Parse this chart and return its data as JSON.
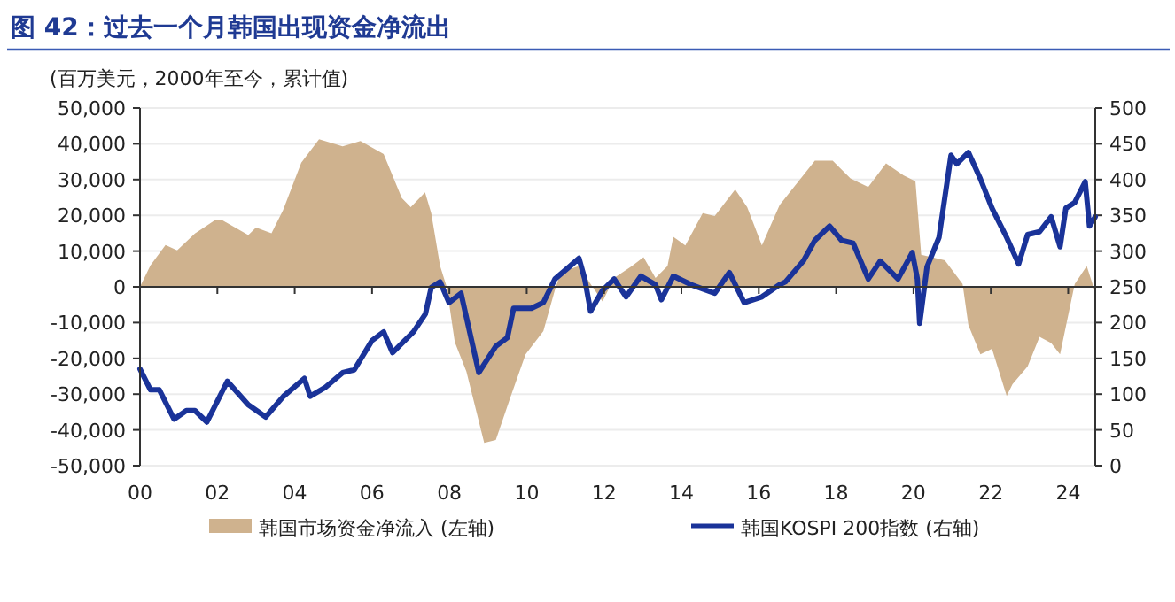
{
  "chart_data": {
    "type": "area",
    "title": "图 42：过去一个月韩国出现资金净流出",
    "subtitle": "(百万美元，2000年至今，累计值)",
    "xlim": [
      2000,
      2024.7
    ],
    "xticks": [
      {
        "value": 2000,
        "label": "00"
      },
      {
        "value": 2002,
        "label": "02"
      },
      {
        "value": 2004,
        "label": "04"
      },
      {
        "value": 2006,
        "label": "06"
      },
      {
        "value": 2008,
        "label": "08"
      },
      {
        "value": 2010,
        "label": "10"
      },
      {
        "value": 2012,
        "label": "12"
      },
      {
        "value": 2014,
        "label": "14"
      },
      {
        "value": 2016,
        "label": "16"
      },
      {
        "value": 2018,
        "label": "18"
      },
      {
        "value": 2020,
        "label": "20"
      },
      {
        "value": 2022,
        "label": "22"
      },
      {
        "value": 2024,
        "label": "24"
      }
    ],
    "ylim": [
      -50000,
      50000
    ],
    "yticks": [
      {
        "value": -50000,
        "label": "-50,000"
      },
      {
        "value": -40000,
        "label": "-40,000"
      },
      {
        "value": -30000,
        "label": "-30,000"
      },
      {
        "value": -20000,
        "label": "-20,000"
      },
      {
        "value": -10000,
        "label": "-10,000"
      },
      {
        "value": 0,
        "label": "0"
      },
      {
        "value": 10000,
        "label": "10,000"
      },
      {
        "value": 20000,
        "label": "20,000"
      },
      {
        "value": 30000,
        "label": "30,000"
      },
      {
        "value": 40000,
        "label": "40,000"
      },
      {
        "value": 50000,
        "label": "50,000"
      }
    ],
    "y2lim": [
      0,
      500
    ],
    "y2ticks": [
      0,
      50,
      100,
      150,
      200,
      250,
      300,
      350,
      400,
      450,
      500
    ],
    "grid": "y",
    "legend": "bottom",
    "series": [
      {
        "name": "韩国市场资金净流入 (左轴)",
        "type": "area",
        "color": "#cfb28e",
        "x": [
          2000.0,
          2000.27,
          2000.66,
          2000.96,
          2001.42,
          2001.96,
          2002.1,
          2002.8,
          2003.0,
          2003.4,
          2003.7,
          2004.17,
          2004.63,
          2005.24,
          2005.7,
          2006.3,
          2006.77,
          2007.0,
          2007.37,
          2007.53,
          2007.76,
          2007.93,
          2008.14,
          2008.44,
          2008.9,
          2009.2,
          2009.59,
          2009.97,
          2010.43,
          2010.73,
          2010.88,
          2011.35,
          2011.65,
          2011.96,
          2012.26,
          2012.72,
          2013.02,
          2013.33,
          2013.64,
          2013.79,
          2014.1,
          2014.55,
          2014.86,
          2015.39,
          2015.7,
          2016.08,
          2016.54,
          2017.15,
          2017.45,
          2017.91,
          2018.37,
          2018.83,
          2019.29,
          2019.74,
          2020.05,
          2020.2,
          2020.81,
          2021.27,
          2021.42,
          2021.73,
          2022.03,
          2022.41,
          2022.56,
          2022.95,
          2023.26,
          2023.56,
          2023.79,
          2024.17,
          2024.48,
          2024.7
        ],
        "values": [
          0,
          6000,
          11700,
          10200,
          14900,
          18800,
          18800,
          14500,
          16600,
          15000,
          21500,
          34700,
          41300,
          39300,
          40800,
          37100,
          24800,
          22300,
          26400,
          20600,
          5800,
          0,
          -15500,
          -23700,
          -43600,
          -42800,
          -30500,
          -18900,
          -12400,
          -800,
          4100,
          5800,
          800,
          -4100,
          2500,
          5800,
          8300,
          2500,
          5800,
          14000,
          11600,
          20600,
          19800,
          27200,
          22300,
          11600,
          22900,
          31200,
          35300,
          35300,
          30300,
          27900,
          34500,
          31200,
          29500,
          9000,
          7400,
          800,
          -10700,
          -18900,
          -17300,
          -30500,
          -27200,
          -22300,
          -14000,
          -15700,
          -18900,
          800,
          5800,
          -1600
        ]
      },
      {
        "name": "韩国KOSPI 200指数 (右轴)",
        "type": "line",
        "axis": "y2",
        "color": "#1a3399",
        "x": [
          2000.0,
          2000.27,
          2000.5,
          2000.88,
          2001.2,
          2001.42,
          2001.73,
          2002.26,
          2002.8,
          2003.25,
          2003.71,
          2004.25,
          2004.4,
          2004.78,
          2005.24,
          2005.54,
          2006.0,
          2006.3,
          2006.53,
          2006.77,
          2007.07,
          2007.38,
          2007.53,
          2007.76,
          2007.99,
          2008.3,
          2008.76,
          2009.2,
          2009.5,
          2009.66,
          2010.12,
          2010.43,
          2010.73,
          2011.1,
          2011.35,
          2011.5,
          2011.65,
          2011.96,
          2012.26,
          2012.57,
          2012.95,
          2013.33,
          2013.48,
          2013.79,
          2014.25,
          2014.86,
          2015.24,
          2015.62,
          2016.08,
          2016.54,
          2016.69,
          2017.15,
          2017.45,
          2017.83,
          2018.14,
          2018.44,
          2018.83,
          2019.14,
          2019.6,
          2019.97,
          2020.1,
          2020.16,
          2020.35,
          2020.66,
          2020.97,
          2021.12,
          2021.42,
          2021.73,
          2022.03,
          2022.41,
          2022.72,
          2022.95,
          2023.26,
          2023.56,
          2023.79,
          2023.94,
          2024.17,
          2024.44,
          2024.55,
          2024.7
        ],
        "values": [
          135,
          106,
          106,
          65,
          77,
          77,
          61,
          118,
          85,
          68,
          97,
          122,
          97,
          109,
          130,
          134,
          175,
          187,
          158,
          171,
          187,
          212,
          249,
          257,
          228,
          241,
          130,
          167,
          179,
          220,
          220,
          228,
          261,
          278,
          290,
          261,
          216,
          245,
          261,
          236,
          265,
          253,
          232,
          265,
          253,
          241,
          270,
          228,
          236,
          253,
          257,
          286,
          315,
          335,
          315,
          311,
          261,
          286,
          261,
          298,
          261,
          199,
          278,
          319,
          434,
          422,
          438,
          401,
          360,
          319,
          282,
          323,
          327,
          348,
          306,
          360,
          368,
          397,
          335,
          348
        ]
      }
    ]
  }
}
